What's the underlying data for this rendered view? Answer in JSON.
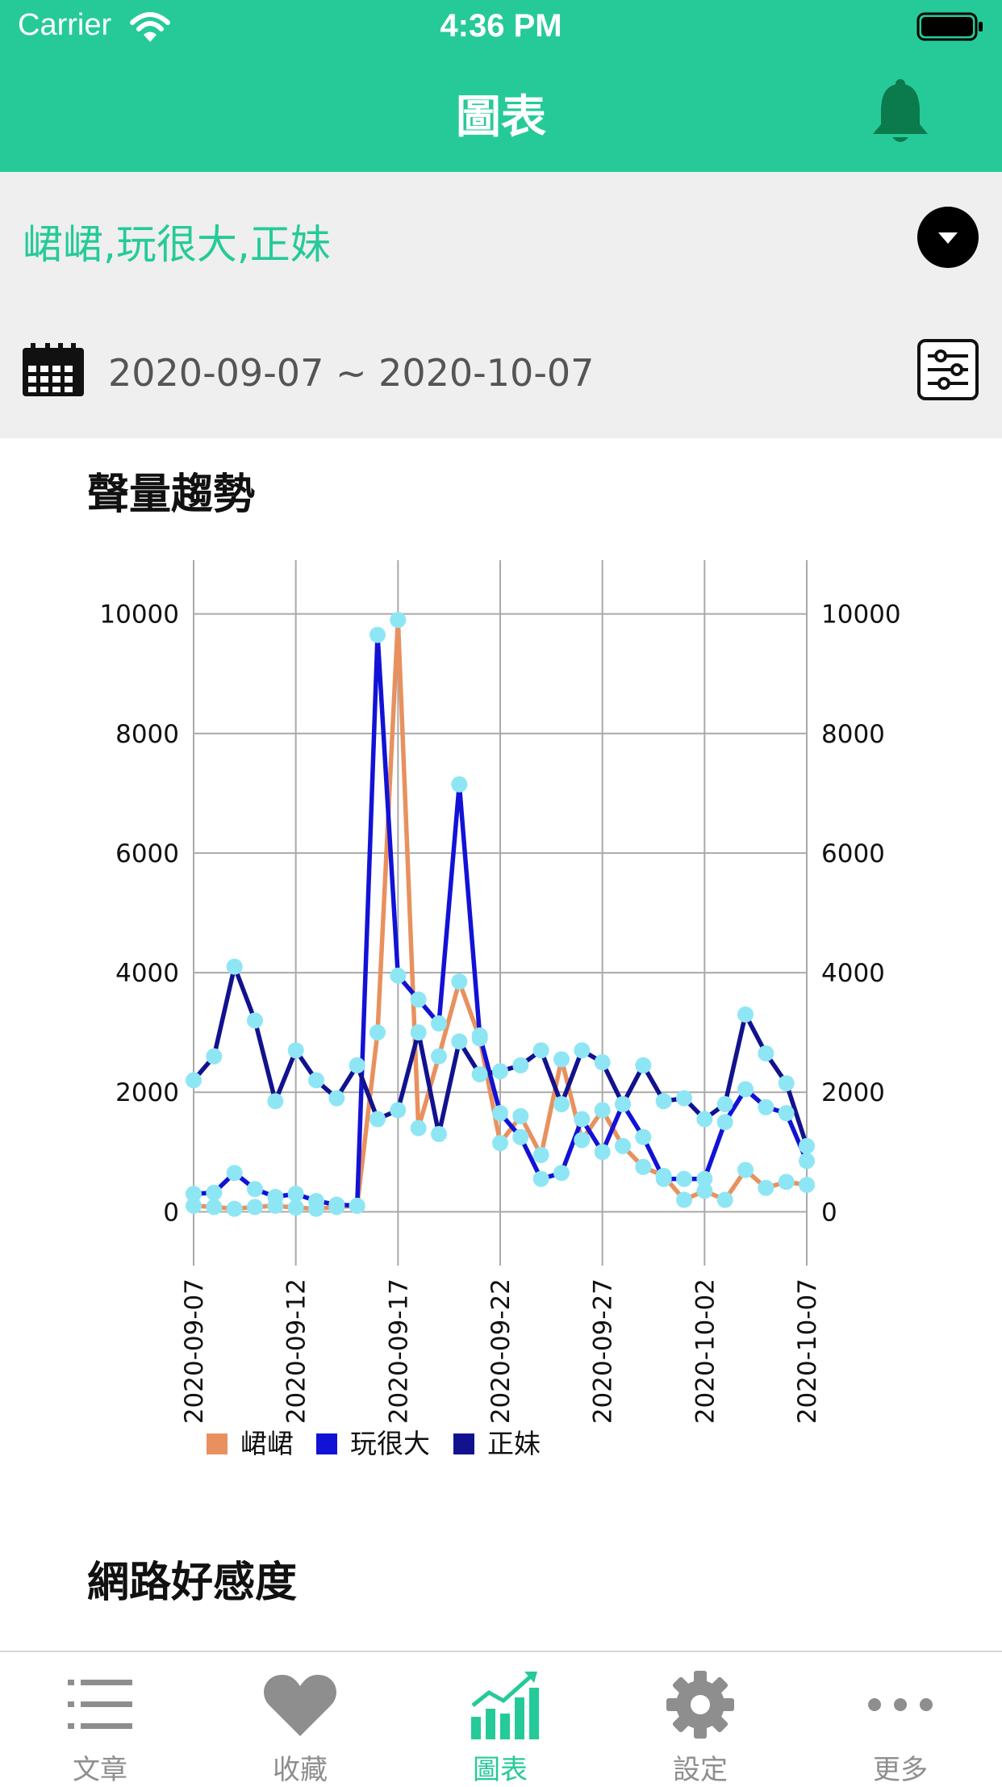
{
  "status_bar": {
    "carrier": "Carrier",
    "time": "4:36 PM"
  },
  "header": {
    "title": "圖表",
    "accent_color": "#26CA99"
  },
  "filter": {
    "keywords": "峮峮,玩很大,正妹",
    "date_range": "2020-09-07 ~ 2020-10-07"
  },
  "sections": {
    "trend_title": "聲量趨勢",
    "sentiment_title": "網路好感度"
  },
  "chart_data": {
    "type": "line",
    "dates": [
      "2020-09-07",
      "2020-09-08",
      "2020-09-09",
      "2020-09-10",
      "2020-09-11",
      "2020-09-12",
      "2020-09-13",
      "2020-09-14",
      "2020-09-15",
      "2020-09-16",
      "2020-09-17",
      "2020-09-18",
      "2020-09-19",
      "2020-09-20",
      "2020-09-21",
      "2020-09-22",
      "2020-09-23",
      "2020-09-24",
      "2020-09-25",
      "2020-09-26",
      "2020-09-27",
      "2020-09-28",
      "2020-09-29",
      "2020-09-30",
      "2020-10-01",
      "2020-10-02",
      "2020-10-03",
      "2020-10-04",
      "2020-10-05",
      "2020-10-06",
      "2020-10-07"
    ],
    "x_tick_labels": [
      "2020-09-07",
      "2020-09-12",
      "2020-09-17",
      "2020-09-22",
      "2020-09-27",
      "2020-10-02",
      "2020-10-07"
    ],
    "y_ticks": [
      0,
      2000,
      4000,
      6000,
      8000,
      10000
    ],
    "ylim": [
      -900,
      10900
    ],
    "grid": true,
    "legend_position": "bottom-left",
    "marker_color": "#8EE6F5",
    "series": [
      {
        "name": "峮峮",
        "color": "#E8915E",
        "values": [
          100,
          80,
          50,
          80,
          100,
          70,
          50,
          80,
          100,
          3000,
          9900,
          1400,
          2600,
          3850,
          2900,
          1150,
          1600,
          950,
          2550,
          1200,
          1700,
          1100,
          750,
          600,
          200,
          350,
          200,
          700,
          400,
          500,
          450
        ]
      },
      {
        "name": "玩很大",
        "color": "#1212D6",
        "values": [
          300,
          320,
          650,
          380,
          250,
          300,
          180,
          120,
          100,
          9650,
          3950,
          3550,
          3150,
          7150,
          2950,
          1650,
          1250,
          550,
          650,
          1550,
          1000,
          1800,
          1250,
          550,
          550,
          550,
          1500,
          2050,
          1750,
          1650,
          850
        ]
      },
      {
        "name": "正妹",
        "color": "#12128F",
        "values": [
          2200,
          2600,
          4100,
          3200,
          1850,
          2700,
          2200,
          1900,
          2450,
          1550,
          1700,
          3000,
          1300,
          2850,
          2300,
          2350,
          2450,
          2700,
          1800,
          2700,
          2500,
          1800,
          2450,
          1850,
          1900,
          1550,
          1800,
          3300,
          2650,
          2150,
          1100
        ]
      }
    ]
  },
  "tabbar": {
    "tabs": [
      {
        "label": "文章",
        "icon": "list-icon"
      },
      {
        "label": "收藏",
        "icon": "heart-icon"
      },
      {
        "label": "圖表",
        "icon": "chart-icon",
        "active": true
      },
      {
        "label": "設定",
        "icon": "gear-icon"
      },
      {
        "label": "更多",
        "icon": "more-icon"
      }
    ]
  }
}
